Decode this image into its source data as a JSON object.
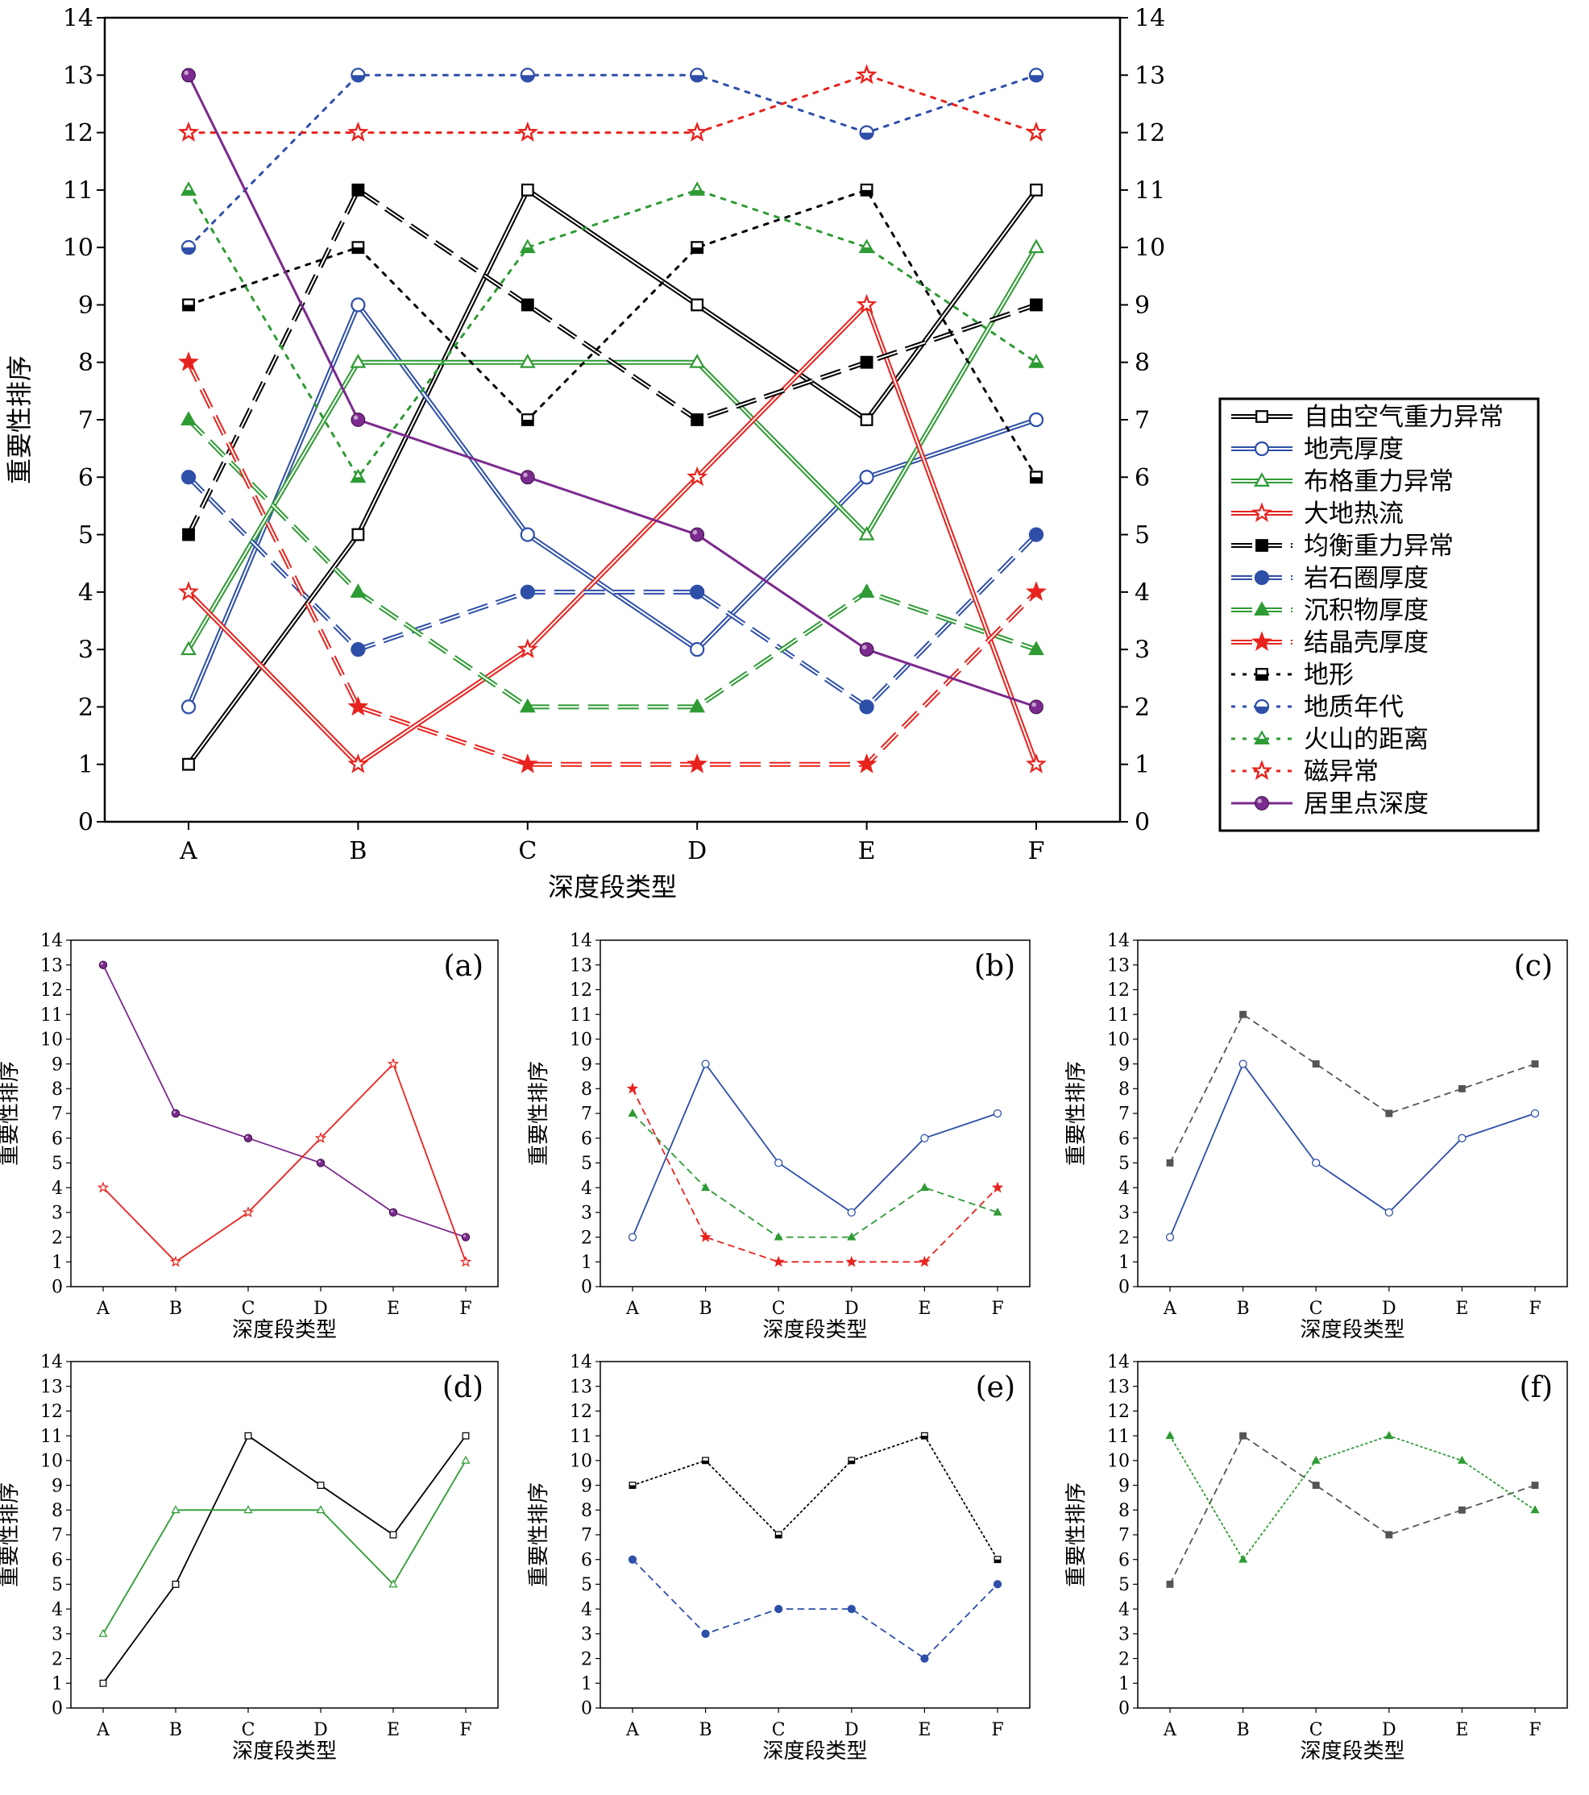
{
  "chart_data": [
    {
      "panel": "main",
      "type": "line",
      "categories": [
        "A",
        "B",
        "C",
        "D",
        "E",
        "F"
      ],
      "xlabel": "深度段类型",
      "ylabel": "重要性排序",
      "ylim": [
        0,
        14
      ],
      "yticks": [
        0,
        1,
        2,
        3,
        4,
        5,
        6,
        7,
        8,
        9,
        10,
        11,
        12,
        13,
        14
      ],
      "right_axis": true,
      "legend_position": "right",
      "series": [
        {
          "name": "自由空气重力异常",
          "color": "#000000",
          "style": "solid",
          "double": true,
          "marker": "square-open",
          "values": [
            1,
            5,
            11,
            9,
            7,
            11
          ]
        },
        {
          "name": "地壳厚度",
          "color": "#2E4FA8",
          "style": "solid",
          "double": true,
          "marker": "circle-open",
          "values": [
            2,
            9,
            5,
            3,
            6,
            7
          ]
        },
        {
          "name": "布格重力异常",
          "color": "#2E9B34",
          "style": "solid",
          "double": true,
          "marker": "triangle-open",
          "values": [
            3,
            8,
            8,
            8,
            5,
            10
          ]
        },
        {
          "name": "大地热流",
          "color": "#E8231E",
          "style": "solid",
          "double": true,
          "marker": "star-open",
          "values": [
            4,
            1,
            3,
            6,
            9,
            1
          ]
        },
        {
          "name": "均衡重力异常",
          "color": "#000000",
          "style": "longdash",
          "double": true,
          "marker": "square-filled",
          "values": [
            5,
            11,
            9,
            7,
            8,
            9
          ]
        },
        {
          "name": "岩石圈厚度",
          "color": "#2E4FA8",
          "style": "longdash",
          "double": true,
          "marker": "circle-filled",
          "values": [
            6,
            3,
            4,
            4,
            2,
            5
          ]
        },
        {
          "name": "沉积物厚度",
          "color": "#2E9B34",
          "style": "longdash",
          "double": true,
          "marker": "triangle-filled",
          "values": [
            7,
            4,
            2,
            2,
            4,
            3
          ]
        },
        {
          "name": "结晶壳厚度",
          "color": "#E8231E",
          "style": "longdash",
          "double": true,
          "marker": "star-filled",
          "values": [
            8,
            2,
            1,
            1,
            1,
            4
          ]
        },
        {
          "name": "地形",
          "color": "#000000",
          "style": "dotted",
          "double": false,
          "marker": "square-half",
          "values": [
            9,
            10,
            7,
            10,
            11,
            6
          ]
        },
        {
          "name": "地质年代",
          "color": "#2E4FA8",
          "style": "dotted",
          "double": false,
          "marker": "circle-half",
          "values": [
            10,
            13,
            13,
            13,
            12,
            13
          ]
        },
        {
          "name": "火山的距离",
          "color": "#2E9B34",
          "style": "dotted",
          "double": false,
          "marker": "triangle-half",
          "values": [
            11,
            6,
            10,
            11,
            10,
            8
          ]
        },
        {
          "name": "磁异常",
          "color": "#E8231E",
          "style": "dotted",
          "double": false,
          "marker": "star-half",
          "values": [
            12,
            12,
            12,
            12,
            13,
            12
          ]
        },
        {
          "name": "居里点深度",
          "color": "#7B2A8E",
          "style": "solid",
          "double": false,
          "marker": "sphere",
          "values": [
            13,
            7,
            6,
            5,
            3,
            2
          ]
        }
      ]
    },
    {
      "panel": "a",
      "label": "(a)",
      "type": "line",
      "categories": [
        "A",
        "B",
        "C",
        "D",
        "E",
        "F"
      ],
      "xlabel": "深度段类型",
      "ylabel": "重要性排序",
      "ylim": [
        0,
        14
      ],
      "series": [
        {
          "color": "#7B2A8E",
          "style": "solid",
          "marker": "sphere",
          "values": [
            13,
            7,
            6,
            5,
            3,
            2
          ]
        },
        {
          "color": "#E8231E",
          "style": "solid",
          "marker": "star-open",
          "values": [
            4,
            1,
            3,
            6,
            9,
            1
          ]
        }
      ]
    },
    {
      "panel": "b",
      "label": "(b)",
      "type": "line",
      "categories": [
        "A",
        "B",
        "C",
        "D",
        "E",
        "F"
      ],
      "xlabel": "深度段类型",
      "ylabel": "重要性排序",
      "ylim": [
        0,
        14
      ],
      "series": [
        {
          "color": "#2E4FA8",
          "style": "solid",
          "marker": "circle-open",
          "values": [
            2,
            9,
            5,
            3,
            6,
            7
          ]
        },
        {
          "color": "#2E9B34",
          "style": "dashed",
          "marker": "triangle-filled",
          "values": [
            7,
            4,
            2,
            2,
            4,
            3
          ]
        },
        {
          "color": "#E8231E",
          "style": "dashed",
          "marker": "star-filled",
          "values": [
            8,
            2,
            1,
            1,
            1,
            4
          ]
        }
      ]
    },
    {
      "panel": "c",
      "label": "(c)",
      "type": "line",
      "categories": [
        "A",
        "B",
        "C",
        "D",
        "E",
        "F"
      ],
      "xlabel": "深度段类型",
      "ylabel": "重要性排序",
      "ylim": [
        0,
        14
      ],
      "series": [
        {
          "color": "#555555",
          "style": "dashed",
          "marker": "square-filled",
          "values": [
            5,
            11,
            9,
            7,
            8,
            9
          ]
        },
        {
          "color": "#2E4FA8",
          "style": "solid",
          "marker": "circle-open",
          "values": [
            2,
            9,
            5,
            3,
            6,
            7
          ]
        }
      ]
    },
    {
      "panel": "d",
      "label": "(d)",
      "type": "line",
      "categories": [
        "A",
        "B",
        "C",
        "D",
        "E",
        "F"
      ],
      "xlabel": "深度段类型",
      "ylabel": "重要性排序",
      "ylim": [
        0,
        14
      ],
      "series": [
        {
          "color": "#000000",
          "style": "solid",
          "marker": "square-open",
          "values": [
            1,
            5,
            11,
            9,
            7,
            11
          ]
        },
        {
          "color": "#2E9B34",
          "style": "solid",
          "marker": "triangle-open",
          "values": [
            3,
            8,
            8,
            8,
            5,
            10
          ]
        }
      ]
    },
    {
      "panel": "e",
      "label": "(e)",
      "type": "line",
      "categories": [
        "A",
        "B",
        "C",
        "D",
        "E",
        "F"
      ],
      "xlabel": "深度段类型",
      "ylabel": "重要性排序",
      "ylim": [
        0,
        14
      ],
      "series": [
        {
          "color": "#000000",
          "style": "dotted",
          "marker": "square-half",
          "values": [
            9,
            10,
            7,
            10,
            11,
            6
          ]
        },
        {
          "color": "#2E4FA8",
          "style": "dashed",
          "marker": "circle-filled",
          "values": [
            6,
            3,
            4,
            4,
            2,
            5
          ]
        }
      ]
    },
    {
      "panel": "f",
      "label": "(f)",
      "type": "line",
      "categories": [
        "A",
        "B",
        "C",
        "D",
        "E",
        "F"
      ],
      "xlabel": "深度段类型",
      "ylabel": "重要性排序",
      "ylim": [
        0,
        14
      ],
      "series": [
        {
          "color": "#555555",
          "style": "dashed",
          "marker": "square-filled",
          "values": [
            5,
            11,
            9,
            7,
            8,
            9
          ]
        },
        {
          "color": "#2E9B34",
          "style": "dotted",
          "marker": "triangle-filled",
          "values": [
            11,
            6,
            10,
            11,
            10,
            8
          ]
        }
      ]
    }
  ]
}
